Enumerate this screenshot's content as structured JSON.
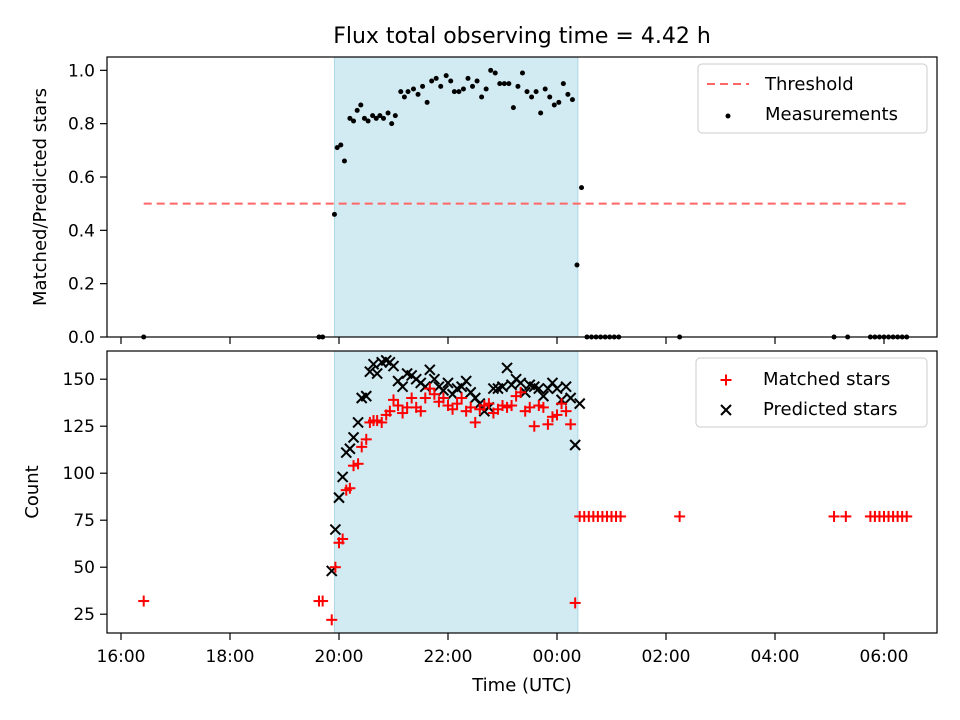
{
  "colors": {
    "shade": "#add8e6",
    "threshold": "#ff6666",
    "measurement": "#000000",
    "matched": "#ff0000",
    "predicted": "#000000"
  },
  "chart_data": [
    {
      "type": "scatter",
      "title": "Flux total observing time = 4.42 h",
      "xlabel": "",
      "ylabel": "Matched/Predicted stars",
      "ylim": [
        0.0,
        1.05
      ],
      "yticks": [
        "0.0",
        "0.2",
        "0.4",
        "0.6",
        "0.8",
        "1.0"
      ],
      "shaded_x_range": [
        "19:55",
        "00:23"
      ],
      "legend_position": "top-right",
      "legend": [
        "Threshold",
        "Measurements"
      ],
      "threshold": {
        "name": "Threshold",
        "x": [
          "16:25",
          "06:25"
        ],
        "y": 0.5
      },
      "series": [
        {
          "name": "Measurements",
          "points": [
            [
              "16:25",
              0.0
            ],
            [
              "19:38",
              0.0
            ],
            [
              "19:42",
              0.0
            ],
            [
              "19:55",
              0.46
            ],
            [
              "19:58",
              0.71
            ],
            [
              "20:02",
              0.72
            ],
            [
              "20:06",
              0.66
            ],
            [
              "20:12",
              0.82
            ],
            [
              "20:16",
              0.81
            ],
            [
              "20:20",
              0.85
            ],
            [
              "20:24",
              0.87
            ],
            [
              "20:28",
              0.82
            ],
            [
              "20:32",
              0.81
            ],
            [
              "20:37",
              0.83
            ],
            [
              "20:41",
              0.82
            ],
            [
              "20:45",
              0.83
            ],
            [
              "20:49",
              0.82
            ],
            [
              "20:54",
              0.84
            ],
            [
              "20:58",
              0.8
            ],
            [
              "21:02",
              0.83
            ],
            [
              "21:08",
              0.92
            ],
            [
              "21:12",
              0.9
            ],
            [
              "21:16",
              0.92
            ],
            [
              "21:22",
              0.93
            ],
            [
              "21:27",
              0.91
            ],
            [
              "21:32",
              0.94
            ],
            [
              "21:37",
              0.88
            ],
            [
              "21:42",
              0.96
            ],
            [
              "21:47",
              0.97
            ],
            [
              "21:52",
              0.94
            ],
            [
              "21:58",
              0.98
            ],
            [
              "22:03",
              0.96
            ],
            [
              "22:07",
              0.92
            ],
            [
              "22:12",
              0.92
            ],
            [
              "22:17",
              0.93
            ],
            [
              "22:22",
              0.97
            ],
            [
              "22:27",
              0.94
            ],
            [
              "22:32",
              0.96
            ],
            [
              "22:37",
              0.9
            ],
            [
              "22:42",
              0.93
            ],
            [
              "22:47",
              1.0
            ],
            [
              "22:52",
              0.99
            ],
            [
              "22:57",
              0.95
            ],
            [
              "23:02",
              0.95
            ],
            [
              "23:07",
              0.95
            ],
            [
              "23:12",
              0.86
            ],
            [
              "23:17",
              0.94
            ],
            [
              "23:22",
              0.99
            ],
            [
              "23:27",
              0.92
            ],
            [
              "23:32",
              0.9
            ],
            [
              "23:37",
              0.92
            ],
            [
              "23:42",
              0.84
            ],
            [
              "23:47",
              0.93
            ],
            [
              "23:52",
              0.9
            ],
            [
              "23:57",
              0.87
            ],
            [
              "00:02",
              0.88
            ],
            [
              "00:07",
              0.95
            ],
            [
              "00:12",
              0.91
            ],
            [
              "00:17",
              0.89
            ],
            [
              "00:22",
              0.27
            ],
            [
              "00:27",
              0.56
            ],
            [
              "00:33",
              0.0
            ],
            [
              "00:38",
              0.0
            ],
            [
              "00:43",
              0.0
            ],
            [
              "00:48",
              0.0
            ],
            [
              "00:53",
              0.0
            ],
            [
              "00:58",
              0.0
            ],
            [
              "01:03",
              0.0
            ],
            [
              "01:08",
              0.0
            ],
            [
              "02:15",
              0.0
            ],
            [
              "05:05",
              0.0
            ],
            [
              "05:20",
              0.0
            ],
            [
              "05:45",
              0.0
            ],
            [
              "05:50",
              0.0
            ],
            [
              "05:55",
              0.0
            ],
            [
              "06:00",
              0.0
            ],
            [
              "06:05",
              0.0
            ],
            [
              "06:10",
              0.0
            ],
            [
              "06:15",
              0.0
            ],
            [
              "06:20",
              0.0
            ],
            [
              "06:25",
              0.0
            ]
          ]
        }
      ]
    },
    {
      "type": "scatter",
      "xlabel": "Time (UTC)",
      "ylabel": "Count",
      "ylim": [
        15,
        165
      ],
      "yticks": [
        "25",
        "50",
        "75",
        "100",
        "125",
        "150"
      ],
      "xticks": [
        "16:00",
        "18:00",
        "20:00",
        "22:00",
        "00:00",
        "02:00",
        "04:00",
        "06:00"
      ],
      "shaded_x_range": [
        "19:55",
        "00:23"
      ],
      "legend_position": "top-right",
      "legend": [
        "Matched stars",
        "Predicted stars"
      ],
      "series": [
        {
          "name": "Matched stars",
          "points": [
            [
              "16:25",
              32
            ],
            [
              "19:38",
              32
            ],
            [
              "19:42",
              32
            ],
            [
              "19:52",
              22
            ],
            [
              "19:56",
              50
            ],
            [
              "20:00",
              63
            ],
            [
              "20:04",
              65
            ],
            [
              "20:08",
              91
            ],
            [
              "20:12",
              92
            ],
            [
              "20:16",
              104
            ],
            [
              "20:21",
              105
            ],
            [
              "20:25",
              114
            ],
            [
              "20:30",
              118
            ],
            [
              "20:34",
              127
            ],
            [
              "20:38",
              128
            ],
            [
              "20:42",
              128
            ],
            [
              "20:47",
              127
            ],
            [
              "20:52",
              131
            ],
            [
              "20:56",
              133
            ],
            [
              "21:00",
              139
            ],
            [
              "21:05",
              136
            ],
            [
              "21:10",
              132
            ],
            [
              "21:15",
              135
            ],
            [
              "21:20",
              140
            ],
            [
              "21:25",
              135
            ],
            [
              "21:30",
              133
            ],
            [
              "21:35",
              140
            ],
            [
              "21:40",
              145
            ],
            [
              "21:45",
              142
            ],
            [
              "21:50",
              138
            ],
            [
              "21:55",
              140
            ],
            [
              "22:00",
              136
            ],
            [
              "22:05",
              134
            ],
            [
              "22:10",
              137
            ],
            [
              "22:15",
              140
            ],
            [
              "22:20",
              133
            ],
            [
              "22:25",
              135
            ],
            [
              "22:30",
              127
            ],
            [
              "22:35",
              134
            ],
            [
              "22:40",
              136
            ],
            [
              "22:45",
              137
            ],
            [
              "22:50",
              132
            ],
            [
              "22:55",
              134
            ],
            [
              "23:00",
              136
            ],
            [
              "23:05",
              135
            ],
            [
              "23:10",
              136
            ],
            [
              "23:15",
              141
            ],
            [
              "23:20",
              143
            ],
            [
              "23:25",
              133
            ],
            [
              "23:30",
              135
            ],
            [
              "23:35",
              125
            ],
            [
              "23:40",
              136
            ],
            [
              "23:45",
              135
            ],
            [
              "23:50",
              126
            ],
            [
              "23:55",
              130
            ],
            [
              "00:00",
              131
            ],
            [
              "00:05",
              137
            ],
            [
              "00:10",
              133
            ],
            [
              "00:15",
              126
            ],
            [
              "00:20",
              31
            ],
            [
              "00:25",
              77
            ],
            [
              "00:30",
              77
            ],
            [
              "00:35",
              77
            ],
            [
              "00:40",
              77
            ],
            [
              "00:45",
              77
            ],
            [
              "00:50",
              77
            ],
            [
              "00:55",
              77
            ],
            [
              "01:00",
              77
            ],
            [
              "01:05",
              77
            ],
            [
              "01:10",
              77
            ],
            [
              "02:15",
              77
            ],
            [
              "05:05",
              77
            ],
            [
              "05:18",
              77
            ],
            [
              "05:45",
              77
            ],
            [
              "05:50",
              77
            ],
            [
              "05:55",
              77
            ],
            [
              "06:00",
              77
            ],
            [
              "06:05",
              77
            ],
            [
              "06:10",
              77
            ],
            [
              "06:15",
              77
            ],
            [
              "06:20",
              77
            ],
            [
              "06:25",
              77
            ]
          ]
        },
        {
          "name": "Predicted stars",
          "points": [
            [
              "19:52",
              48
            ],
            [
              "19:56",
              70
            ],
            [
              "20:00",
              87
            ],
            [
              "20:04",
              98
            ],
            [
              "20:08",
              111
            ],
            [
              "20:12",
              113
            ],
            [
              "20:16",
              119
            ],
            [
              "20:21",
              127
            ],
            [
              "20:25",
              140
            ],
            [
              "20:30",
              141
            ],
            [
              "20:34",
              154
            ],
            [
              "20:38",
              158
            ],
            [
              "20:42",
              153
            ],
            [
              "20:47",
              159
            ],
            [
              "20:52",
              160
            ],
            [
              "20:56",
              159
            ],
            [
              "21:00",
              157
            ],
            [
              "21:05",
              149
            ],
            [
              "21:10",
              146
            ],
            [
              "21:15",
              153
            ],
            [
              "21:20",
              152
            ],
            [
              "21:25",
              150
            ],
            [
              "21:30",
              148
            ],
            [
              "21:35",
              146
            ],
            [
              "21:40",
              155
            ],
            [
              "21:45",
              150
            ],
            [
              "21:50",
              146
            ],
            [
              "21:55",
              144
            ],
            [
              "22:00",
              148
            ],
            [
              "22:05",
              142
            ],
            [
              "22:10",
              145
            ],
            [
              "22:15",
              146
            ],
            [
              "22:20",
              149
            ],
            [
              "22:25",
              143
            ],
            [
              "22:30",
              140
            ],
            [
              "22:35",
              137
            ],
            [
              "22:40",
              133
            ],
            [
              "22:45",
              135
            ],
            [
              "22:50",
              145
            ],
            [
              "22:55",
              145
            ],
            [
              "23:00",
              146
            ],
            [
              "23:05",
              156
            ],
            [
              "23:10",
              147
            ],
            [
              "23:15",
              150
            ],
            [
              "23:20",
              148
            ],
            [
              "23:25",
              143
            ],
            [
              "23:30",
              147
            ],
            [
              "23:35",
              146
            ],
            [
              "23:40",
              145
            ],
            [
              "23:45",
              141
            ],
            [
              "23:50",
              145
            ],
            [
              "23:55",
              148
            ],
            [
              "00:00",
              145
            ],
            [
              "00:05",
              139
            ],
            [
              "00:10",
              146
            ],
            [
              "00:15",
              140
            ],
            [
              "00:20",
              115
            ],
            [
              "00:25",
              137
            ]
          ]
        }
      ]
    }
  ]
}
